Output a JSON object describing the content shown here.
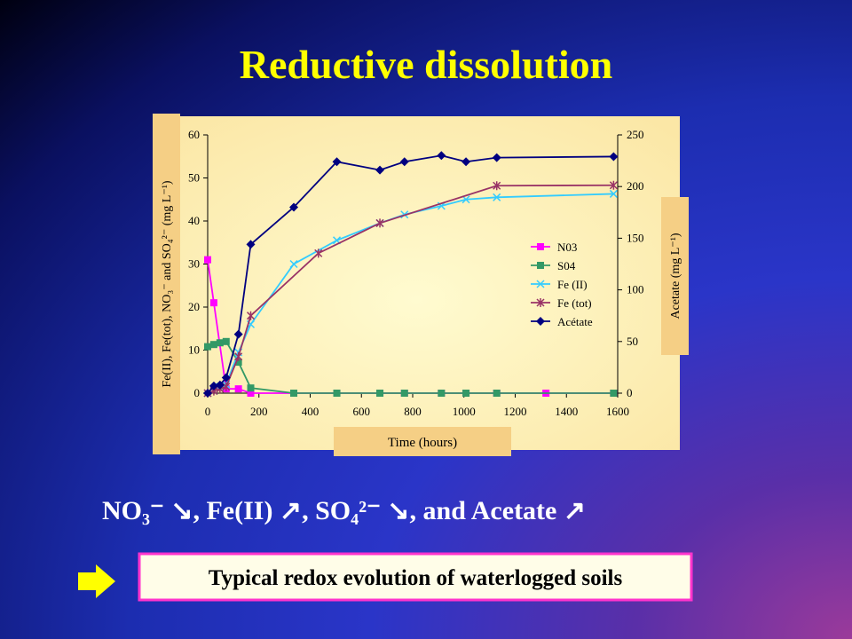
{
  "title": "Reductive dissolution",
  "chart_data": {
    "type": "line",
    "xlabel": "Time (hours)",
    "ylabel": "Fe(II), Fe(tot), NO₃⁻ and SO₄²⁻ (mg L⁻¹)",
    "y2label": "Acetate (mg L⁻¹)",
    "xlim": [
      0,
      1600
    ],
    "xticks": [
      0,
      200,
      400,
      600,
      800,
      1000,
      1200,
      1400,
      1600
    ],
    "ylim": [
      0,
      60
    ],
    "yticks": [
      0,
      10,
      20,
      30,
      40,
      50,
      60
    ],
    "y2lim": [
      0,
      250
    ],
    "y2ticks": [
      0,
      50,
      100,
      150,
      200,
      250
    ],
    "legend": "right",
    "series": [
      {
        "name": "N03",
        "color": "#ff00ff",
        "marker": "square",
        "x": [
          0,
          24,
          72,
          120,
          168,
          336,
          504,
          672,
          768,
          912,
          1008,
          1128,
          1320,
          1584
        ],
        "values": [
          31,
          21,
          1,
          1,
          0,
          0,
          0,
          0,
          0,
          0,
          0,
          0,
          0,
          0
        ]
      },
      {
        "name": "S04",
        "color": "#339966",
        "marker": "square",
        "x": [
          0,
          24,
          48,
          72,
          120,
          168,
          336,
          504,
          672,
          768,
          912,
          1008,
          1128,
          1584
        ],
        "values": [
          10.8,
          11.3,
          11.7,
          12,
          7.2,
          1.2,
          0,
          0,
          0,
          0,
          0,
          0,
          0,
          0
        ]
      },
      {
        "name": "Fe (II)",
        "color": "#33ccff",
        "marker": "x",
        "x": [
          0,
          24,
          48,
          72,
          120,
          168,
          336,
          504,
          672,
          768,
          912,
          1008,
          1128,
          1584
        ],
        "values": [
          0,
          0.5,
          1.5,
          2,
          9.5,
          16,
          30,
          35.5,
          39.5,
          41.5,
          43.5,
          45,
          45.5,
          46.3
        ]
      },
      {
        "name": "Fe (tot)",
        "color": "#993366",
        "marker": "star",
        "x": [
          0,
          24,
          48,
          72,
          120,
          168,
          432,
          672,
          1128,
          1584
        ],
        "values": [
          0,
          0.5,
          1,
          1.5,
          8.5,
          18,
          32.5,
          39.5,
          48.2,
          48.3
        ]
      },
      {
        "name": "Acétate",
        "color": "#000080",
        "marker": "diamond",
        "axis": "y2",
        "x": [
          0,
          24,
          48,
          72,
          120,
          168,
          336,
          504,
          672,
          768,
          912,
          1008,
          1128,
          1584
        ],
        "values": [
          0,
          7,
          8,
          15,
          57,
          144,
          180,
          224,
          216,
          224,
          230,
          224,
          228,
          229
        ]
      }
    ]
  },
  "caption": "NO₃⁻ ↘, Fe(II) ↗, SO₄²⁻ ↘, and Acetate ↗",
  "conclusion": "Typical redox evolution of waterlogged soils"
}
